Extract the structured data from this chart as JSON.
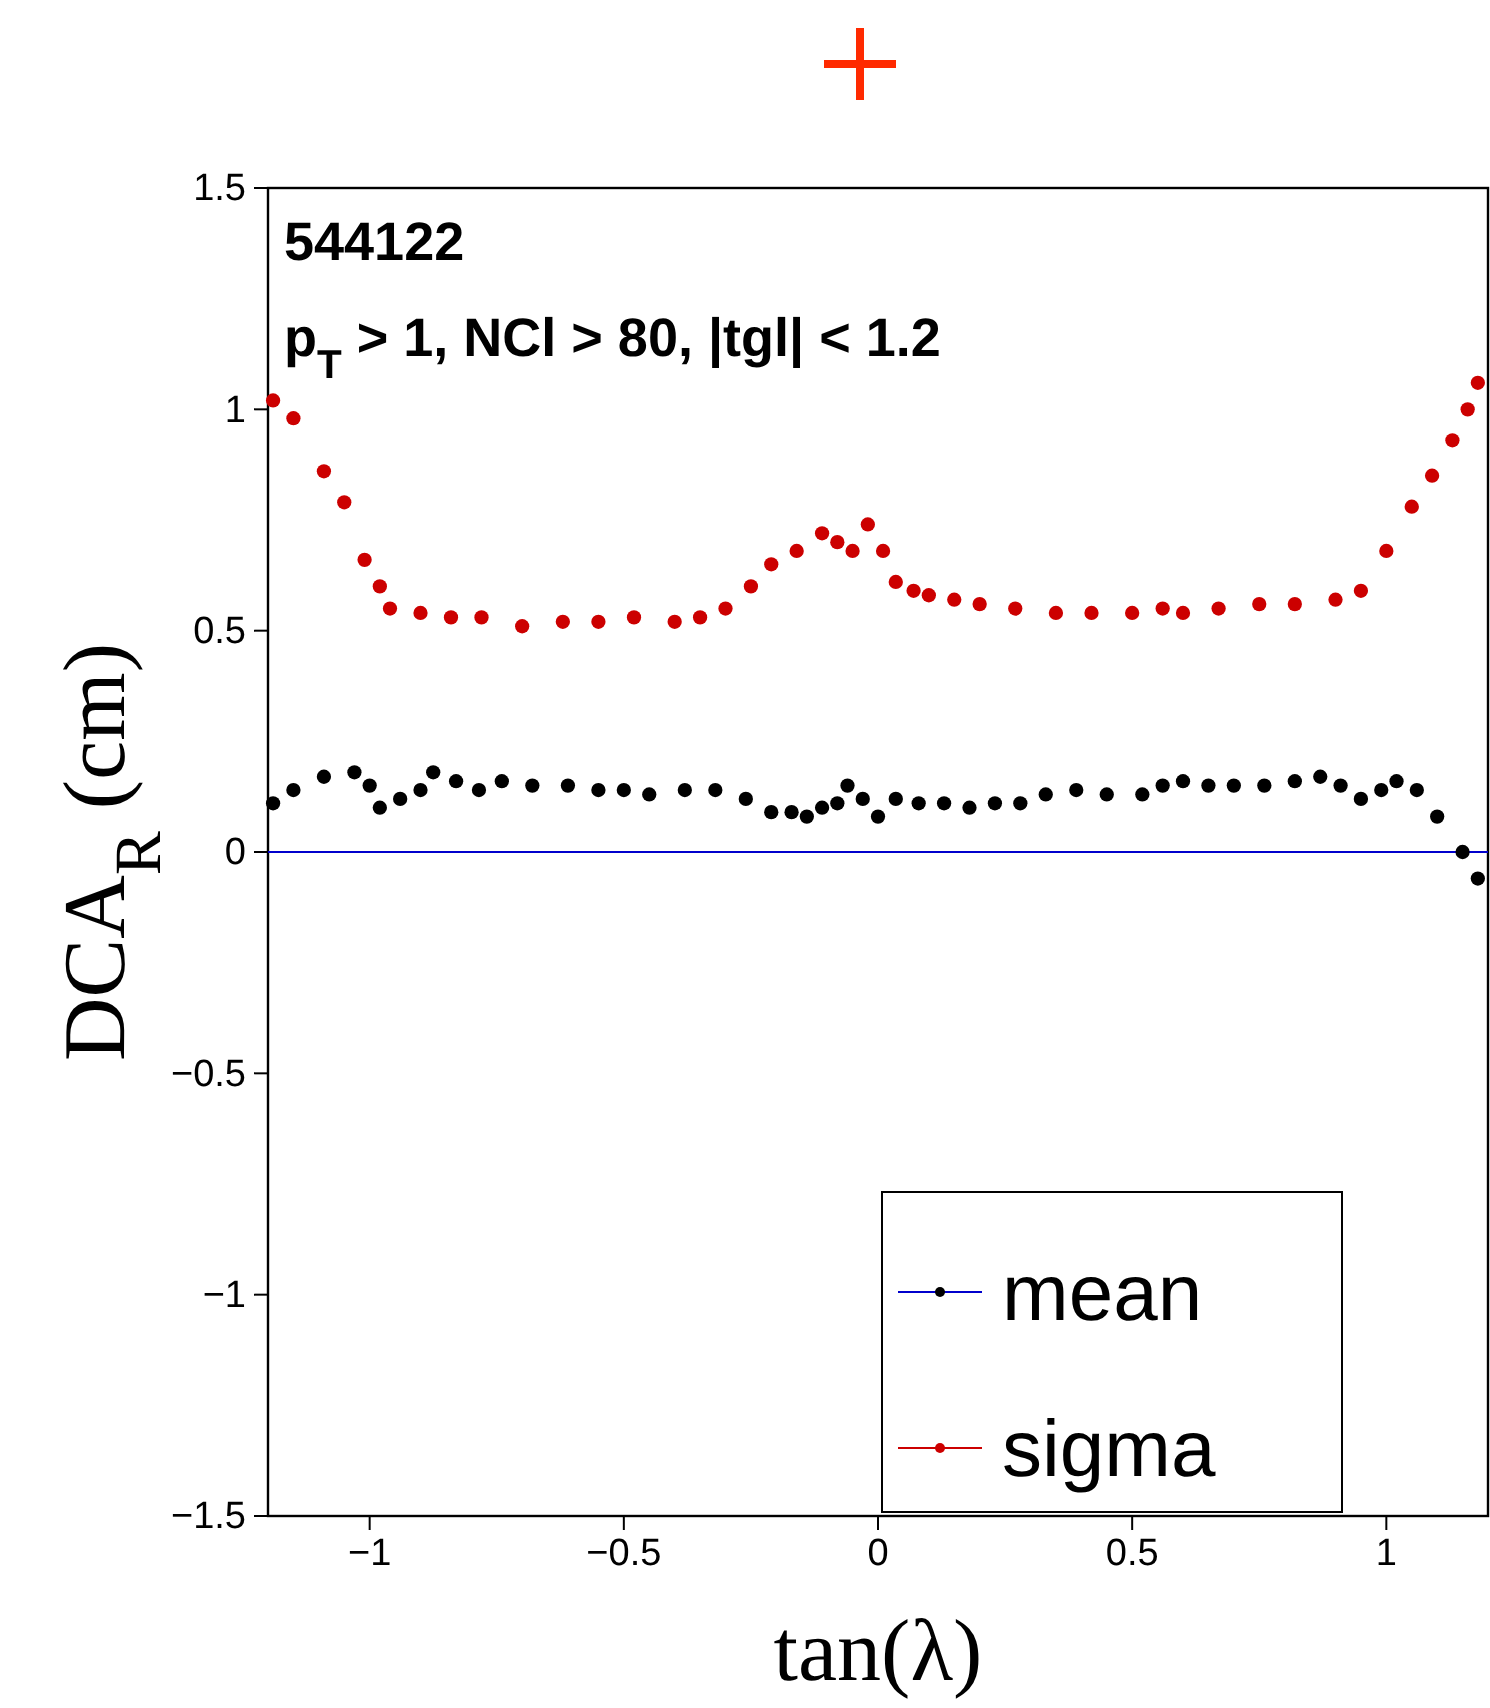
{
  "chart_data": {
    "type": "scatter",
    "xlabel": "tan(λ)",
    "ylabel": "DCA$_{R}$ (cm)",
    "annotations": [
      "544122",
      "p$_{T}$ > 1, NCl > 80, |tgl| < 1.2"
    ],
    "xlim": [
      -1.2,
      1.2
    ],
    "ylim": [
      -1.5,
      1.5
    ],
    "xticks": [
      {
        "value": -1,
        "label": "−1"
      },
      {
        "value": -0.5,
        "label": "−0.5"
      },
      0,
      0.5,
      1
    ],
    "yticks": [
      {
        "value": -1.5,
        "label": "−1.5"
      },
      {
        "value": -1,
        "label": "−1"
      },
      {
        "value": -0.5,
        "label": "−0.5"
      },
      0,
      0.5,
      1,
      1.5
    ],
    "ref_lines": [
      {
        "axis": "y",
        "value": 0,
        "label": null,
        "color": "#0000cc"
      }
    ],
    "legend": "bottom right",
    "marker": "circle",
    "grid": false,
    "series": [
      {
        "name": "mean",
        "color": "#000000",
        "x": [
          -1.19,
          -1.15,
          -1.09,
          -1.03,
          -1.0,
          -0.98,
          -0.94,
          -0.9,
          -0.875,
          -0.83,
          -0.785,
          -0.74,
          -0.68,
          -0.61,
          -0.55,
          -0.5,
          -0.45,
          -0.38,
          -0.32,
          -0.26,
          -0.21,
          -0.17,
          -0.14,
          -0.11,
          -0.08,
          -0.06,
          -0.03,
          0.0,
          0.035,
          0.08,
          0.13,
          0.18,
          0.23,
          0.28,
          0.33,
          0.39,
          0.45,
          0.52,
          0.56,
          0.6,
          0.65,
          0.7,
          0.76,
          0.82,
          0.87,
          0.91,
          0.95,
          0.99,
          1.02,
          1.06,
          1.1,
          1.15,
          1.18
        ],
        "values": [
          0.11,
          0.14,
          0.17,
          0.18,
          0.15,
          0.1,
          0.12,
          0.14,
          0.18,
          0.16,
          0.14,
          0.16,
          0.15,
          0.15,
          0.14,
          0.14,
          0.13,
          0.14,
          0.14,
          0.12,
          0.09,
          0.09,
          0.08,
          0.1,
          0.11,
          0.15,
          0.12,
          0.08,
          0.12,
          0.11,
          0.11,
          0.1,
          0.11,
          0.11,
          0.13,
          0.14,
          0.13,
          0.13,
          0.15,
          0.16,
          0.15,
          0.15,
          0.15,
          0.16,
          0.17,
          0.15,
          0.12,
          0.14,
          0.16,
          0.14,
          0.08,
          0.0,
          -0.06
        ]
      },
      {
        "name": "sigma",
        "color": "#cc0000",
        "x": [
          -1.19,
          -1.15,
          -1.09,
          -1.05,
          -1.01,
          -0.98,
          -0.96,
          -0.9,
          -0.84,
          -0.78,
          -0.7,
          -0.62,
          -0.55,
          -0.48,
          -0.4,
          -0.35,
          -0.3,
          -0.25,
          -0.21,
          -0.16,
          -0.11,
          -0.08,
          -0.05,
          -0.02,
          0.01,
          0.035,
          0.07,
          0.1,
          0.15,
          0.2,
          0.27,
          0.35,
          0.42,
          0.5,
          0.56,
          0.6,
          0.67,
          0.75,
          0.82,
          0.9,
          0.95,
          1.0,
          1.05,
          1.09,
          1.13,
          1.16,
          1.18
        ],
        "values": [
          1.02,
          0.98,
          0.86,
          0.79,
          0.66,
          0.6,
          0.55,
          0.54,
          0.53,
          0.53,
          0.51,
          0.52,
          0.52,
          0.53,
          0.52,
          0.53,
          0.55,
          0.6,
          0.65,
          0.68,
          0.72,
          0.7,
          0.68,
          0.74,
          0.68,
          0.61,
          0.59,
          0.58,
          0.57,
          0.56,
          0.55,
          0.54,
          0.54,
          0.54,
          0.55,
          0.54,
          0.55,
          0.56,
          0.56,
          0.57,
          0.59,
          0.68,
          0.78,
          0.85,
          0.93,
          1.0,
          1.06
        ]
      }
    ]
  }
}
